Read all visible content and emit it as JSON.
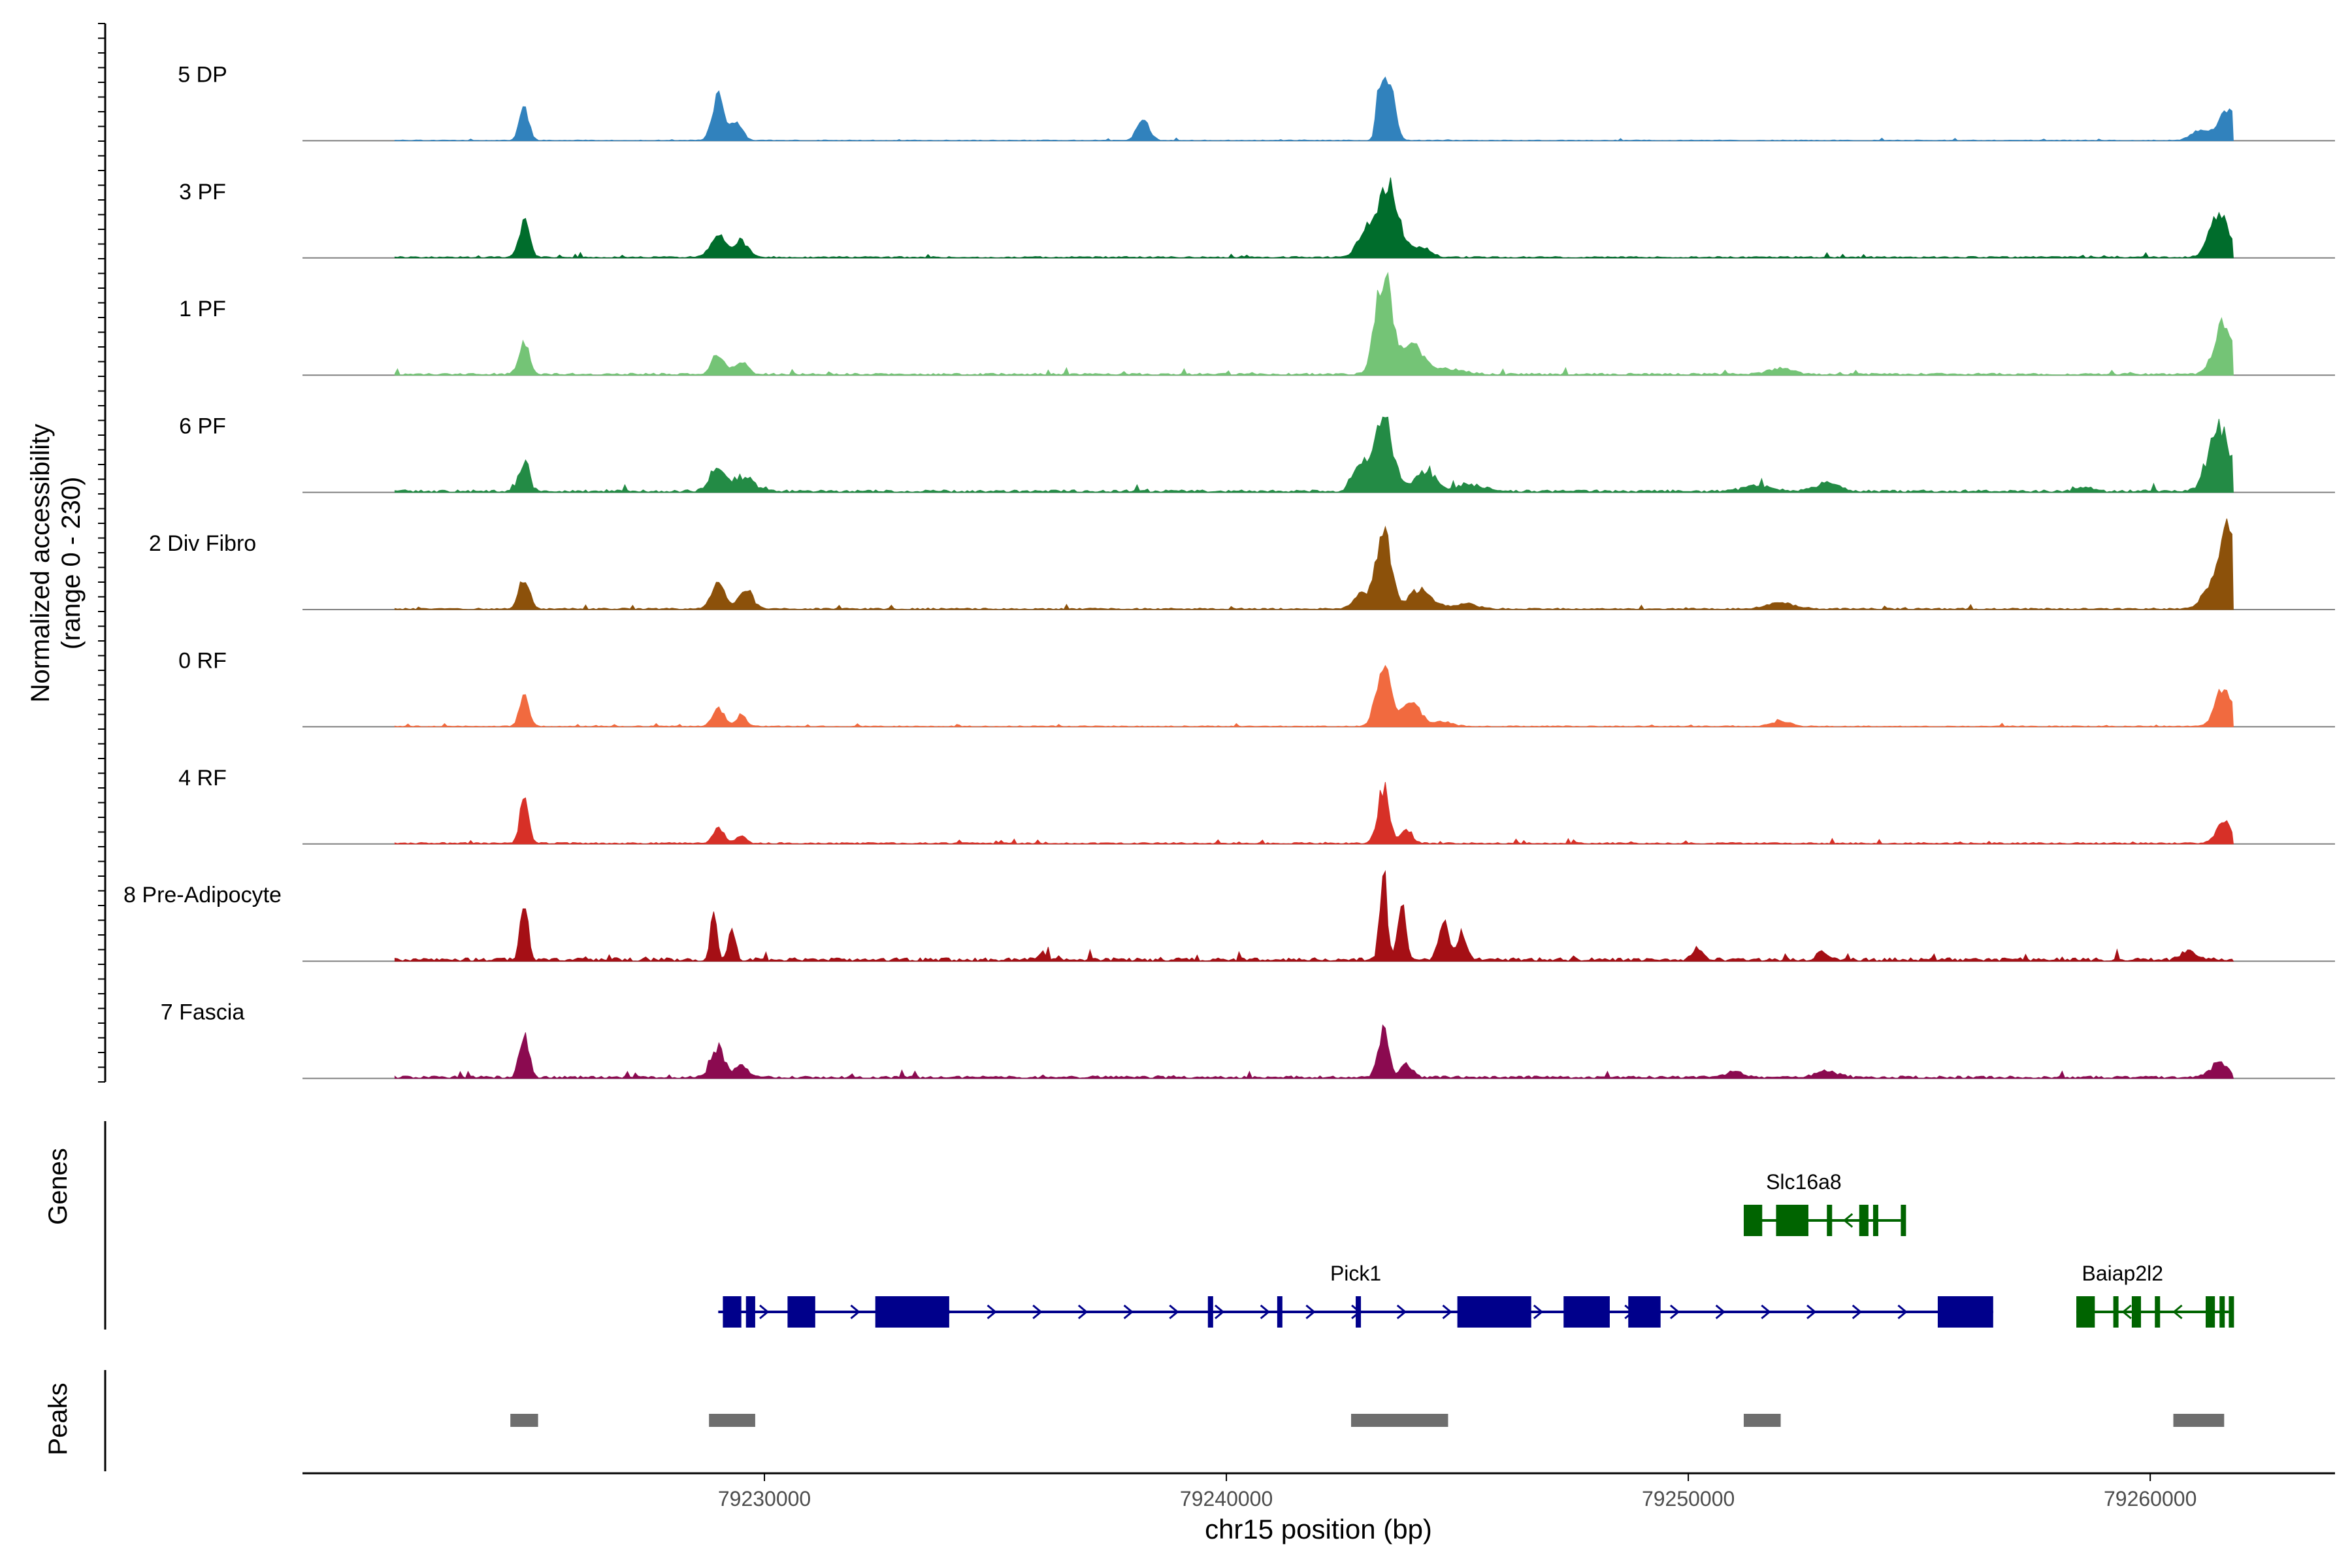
{
  "chart_data": {
    "type": "area",
    "title": "",
    "chromosome": "chr15",
    "xlabel": "chr15 position (bp)",
    "xlim": [
      79220000,
      79264000
    ],
    "x_ticks": [
      79230000,
      79240000,
      79250000,
      79260000
    ],
    "x_tick_labels": [
      "79230000",
      "79240000",
      "79250000",
      "79260000"
    ],
    "ylabel": "Normalized accessibility",
    "ylabel_range": "(range 0 - 230)",
    "ylim": [
      0,
      230
    ],
    "genes_label": "Genes",
    "peaks_label": "Peaks",
    "track_start": 79222000,
    "track_end": 79261800,
    "series": [
      {
        "name": "5 DP",
        "color": "#3182bd",
        "noise": 1.5,
        "peaks": [
          [
            79224800,
            80,
            100
          ],
          [
            79229000,
            100,
            130
          ],
          [
            79229400,
            45,
            120
          ],
          [
            79238200,
            50,
            130
          ],
          [
            79243500,
            150,
            130
          ],
          [
            79243300,
            80,
            60
          ],
          [
            79261700,
            80,
            180
          ],
          [
            79261100,
            25,
            200
          ]
        ]
      },
      {
        "name": "3 PF",
        "color": "#006d2c",
        "noise": 3,
        "peaks": [
          [
            79224800,
            85,
            110
          ],
          [
            79229000,
            50,
            170
          ],
          [
            79229500,
            40,
            140
          ],
          [
            79243500,
            170,
            220
          ],
          [
            79243000,
            60,
            160
          ],
          [
            79244200,
            25,
            200
          ],
          [
            79261500,
            110,
            200
          ]
        ]
      },
      {
        "name": "1 PF",
        "color": "#74c476",
        "noise": 4,
        "peaks": [
          [
            79224800,
            75,
            110
          ],
          [
            79229000,
            50,
            130
          ],
          [
            79229500,
            30,
            140
          ],
          [
            79243400,
            230,
            170
          ],
          [
            79244000,
            70,
            250
          ],
          [
            79244800,
            12,
            350
          ],
          [
            79252000,
            15,
            250
          ],
          [
            79261600,
            120,
            200
          ]
        ]
      },
      {
        "name": "6 PF",
        "color": "#238b45",
        "noise": 5,
        "peaks": [
          [
            79224800,
            65,
            110
          ],
          [
            79229000,
            55,
            180
          ],
          [
            79229600,
            35,
            180
          ],
          [
            79243400,
            170,
            200
          ],
          [
            79242900,
            70,
            150
          ],
          [
            79244300,
            45,
            230
          ],
          [
            79245300,
            15,
            300
          ],
          [
            79251500,
            12,
            300
          ],
          [
            79253000,
            20,
            250
          ],
          [
            79258600,
            10,
            150
          ],
          [
            79261500,
            150,
            230
          ]
        ]
      },
      {
        "name": "2 Div Fibro",
        "color": "#8c510a",
        "noise": 3,
        "peaks": [
          [
            79224800,
            75,
            110
          ],
          [
            79229000,
            65,
            140
          ],
          [
            79229600,
            50,
            140
          ],
          [
            79243400,
            190,
            160
          ],
          [
            79242900,
            35,
            150
          ],
          [
            79244200,
            45,
            250
          ],
          [
            79245200,
            12,
            250
          ],
          [
            79252000,
            15,
            300
          ],
          [
            79261700,
            190,
            180
          ],
          [
            79261300,
            50,
            180
          ]
        ]
      },
      {
        "name": "0 RF",
        "color": "#f16a3f",
        "noise": 2,
        "peaks": [
          [
            79224800,
            70,
            100
          ],
          [
            79229000,
            45,
            120
          ],
          [
            79229500,
            28,
            110
          ],
          [
            79243400,
            150,
            150
          ],
          [
            79244000,
            60,
            200
          ],
          [
            79244700,
            10,
            200
          ],
          [
            79252000,
            12,
            200
          ],
          [
            79261600,
            90,
            180
          ]
        ]
      },
      {
        "name": "4 RF",
        "color": "#d73027",
        "noise": 3,
        "peaks": [
          [
            79224800,
            110,
            90
          ],
          [
            79229000,
            35,
            120
          ],
          [
            79229500,
            20,
            100
          ],
          [
            79243400,
            130,
            120
          ],
          [
            79243900,
            35,
            120
          ],
          [
            79261600,
            50,
            160
          ]
        ]
      },
      {
        "name": "8 Pre-Adipocyte",
        "color": "#a50f15",
        "noise": 7,
        "peaks": [
          [
            79224800,
            150,
            80
          ],
          [
            79228900,
            110,
            70
          ],
          [
            79229300,
            80,
            70
          ],
          [
            79243400,
            200,
            80
          ],
          [
            79243800,
            120,
            90
          ],
          [
            79244700,
            90,
            110
          ],
          [
            79245100,
            60,
            100
          ],
          [
            79236000,
            15,
            100
          ],
          [
            79250200,
            25,
            100
          ],
          [
            79252900,
            20,
            100
          ],
          [
            79260800,
            20,
            150
          ]
        ]
      },
      {
        "name": "7 Fascia",
        "color": "#8b0a50",
        "noise": 5,
        "peaks": [
          [
            79224800,
            100,
            100
          ],
          [
            79229000,
            70,
            140
          ],
          [
            79229500,
            30,
            120
          ],
          [
            79243400,
            115,
            110
          ],
          [
            79243900,
            30,
            120
          ],
          [
            79251000,
            12,
            200
          ],
          [
            79253000,
            15,
            250
          ],
          [
            79261500,
            35,
            180
          ]
        ]
      }
    ],
    "genes": [
      {
        "name": "Pick1",
        "strand": "+",
        "color": "#00008b",
        "row": 2,
        "label_x": 79242800,
        "start": 79229000,
        "end": 79256600,
        "exons": [
          [
            79229100,
            79229500
          ],
          [
            79229600,
            79229800
          ],
          [
            79230500,
            79231100
          ],
          [
            79232400,
            79234000
          ],
          [
            79239600,
            79239700
          ],
          [
            79241100,
            79241200
          ],
          [
            79242800,
            79242900
          ],
          [
            79245000,
            79246600
          ],
          [
            79247300,
            79248300
          ],
          [
            79248700,
            79249400
          ],
          [
            79255400,
            79256600
          ]
        ]
      },
      {
        "name": "Slc16a8",
        "strand": "-",
        "color": "#006400",
        "row": 1,
        "label_x": 79252500,
        "start": 79251200,
        "end": 79254600,
        "exons": [
          [
            79251200,
            79251600
          ],
          [
            79251900,
            79252600
          ],
          [
            79253000,
            79253100
          ],
          [
            79253700,
            79253900
          ],
          [
            79254000,
            79254100
          ],
          [
            79254600,
            79254650
          ]
        ]
      },
      {
        "name": "Baiap2l2",
        "strand": "-",
        "color": "#006400",
        "row": 2,
        "label_x": 79259400,
        "start": 79258400,
        "end": 79261700,
        "exons": [
          [
            79258400,
            79258800
          ],
          [
            79259200,
            79259300
          ],
          [
            79259600,
            79259800
          ],
          [
            79260100,
            79260200
          ],
          [
            79261200,
            79261400
          ],
          [
            79261500,
            79261600
          ],
          [
            79261700,
            79261750
          ]
        ]
      }
    ],
    "peaks": [
      [
        79224500,
        79225100
      ],
      [
        79228800,
        79229800
      ],
      [
        79242700,
        79244800
      ],
      [
        79251200,
        79252000
      ],
      [
        79260500,
        79261600
      ]
    ]
  }
}
